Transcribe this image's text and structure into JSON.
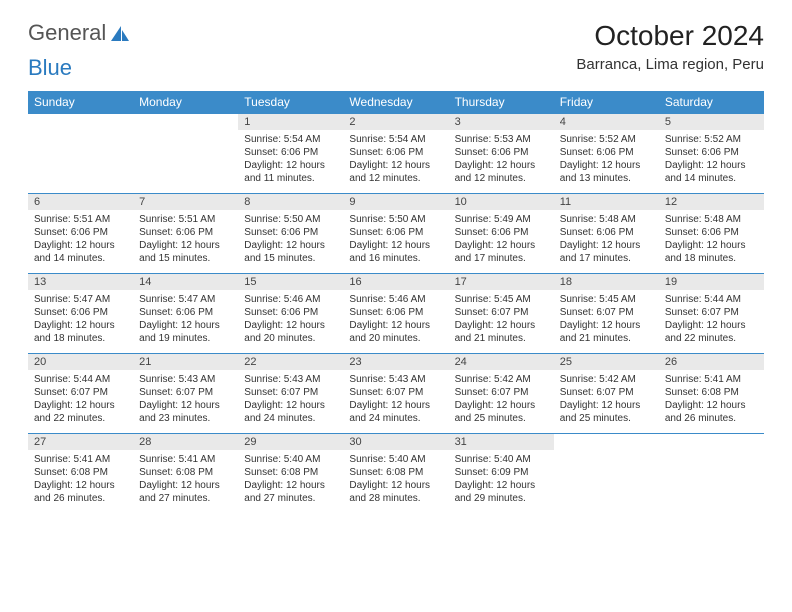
{
  "brand": {
    "part1": "General",
    "part2": "Blue"
  },
  "title": "October 2024",
  "location": "Barranca, Lima region, Peru",
  "colors": {
    "header_bg": "#3b8bc9",
    "header_text": "#ffffff",
    "daynum_bg": "#e9e9e9",
    "rule": "#3b8bc9",
    "text": "#333333",
    "brand_blue": "#2a7abf"
  },
  "dow": [
    "Sunday",
    "Monday",
    "Tuesday",
    "Wednesday",
    "Thursday",
    "Friday",
    "Saturday"
  ],
  "weeks": [
    {
      "nums": [
        "",
        "",
        "1",
        "2",
        "3",
        "4",
        "5"
      ],
      "cells": [
        null,
        null,
        {
          "sr": "5:54 AM",
          "ss": "6:06 PM",
          "dl": "12 hours and 11 minutes."
        },
        {
          "sr": "5:54 AM",
          "ss": "6:06 PM",
          "dl": "12 hours and 12 minutes."
        },
        {
          "sr": "5:53 AM",
          "ss": "6:06 PM",
          "dl": "12 hours and 12 minutes."
        },
        {
          "sr": "5:52 AM",
          "ss": "6:06 PM",
          "dl": "12 hours and 13 minutes."
        },
        {
          "sr": "5:52 AM",
          "ss": "6:06 PM",
          "dl": "12 hours and 14 minutes."
        }
      ]
    },
    {
      "nums": [
        "6",
        "7",
        "8",
        "9",
        "10",
        "11",
        "12"
      ],
      "cells": [
        {
          "sr": "5:51 AM",
          "ss": "6:06 PM",
          "dl": "12 hours and 14 minutes."
        },
        {
          "sr": "5:51 AM",
          "ss": "6:06 PM",
          "dl": "12 hours and 15 minutes."
        },
        {
          "sr": "5:50 AM",
          "ss": "6:06 PM",
          "dl": "12 hours and 15 minutes."
        },
        {
          "sr": "5:50 AM",
          "ss": "6:06 PM",
          "dl": "12 hours and 16 minutes."
        },
        {
          "sr": "5:49 AM",
          "ss": "6:06 PM",
          "dl": "12 hours and 17 minutes."
        },
        {
          "sr": "5:48 AM",
          "ss": "6:06 PM",
          "dl": "12 hours and 17 minutes."
        },
        {
          "sr": "5:48 AM",
          "ss": "6:06 PM",
          "dl": "12 hours and 18 minutes."
        }
      ]
    },
    {
      "nums": [
        "13",
        "14",
        "15",
        "16",
        "17",
        "18",
        "19"
      ],
      "cells": [
        {
          "sr": "5:47 AM",
          "ss": "6:06 PM",
          "dl": "12 hours and 18 minutes."
        },
        {
          "sr": "5:47 AM",
          "ss": "6:06 PM",
          "dl": "12 hours and 19 minutes."
        },
        {
          "sr": "5:46 AM",
          "ss": "6:06 PM",
          "dl": "12 hours and 20 minutes."
        },
        {
          "sr": "5:46 AM",
          "ss": "6:06 PM",
          "dl": "12 hours and 20 minutes."
        },
        {
          "sr": "5:45 AM",
          "ss": "6:07 PM",
          "dl": "12 hours and 21 minutes."
        },
        {
          "sr": "5:45 AM",
          "ss": "6:07 PM",
          "dl": "12 hours and 21 minutes."
        },
        {
          "sr": "5:44 AM",
          "ss": "6:07 PM",
          "dl": "12 hours and 22 minutes."
        }
      ]
    },
    {
      "nums": [
        "20",
        "21",
        "22",
        "23",
        "24",
        "25",
        "26"
      ],
      "cells": [
        {
          "sr": "5:44 AM",
          "ss": "6:07 PM",
          "dl": "12 hours and 22 minutes."
        },
        {
          "sr": "5:43 AM",
          "ss": "6:07 PM",
          "dl": "12 hours and 23 minutes."
        },
        {
          "sr": "5:43 AM",
          "ss": "6:07 PM",
          "dl": "12 hours and 24 minutes."
        },
        {
          "sr": "5:43 AM",
          "ss": "6:07 PM",
          "dl": "12 hours and 24 minutes."
        },
        {
          "sr": "5:42 AM",
          "ss": "6:07 PM",
          "dl": "12 hours and 25 minutes."
        },
        {
          "sr": "5:42 AM",
          "ss": "6:07 PM",
          "dl": "12 hours and 25 minutes."
        },
        {
          "sr": "5:41 AM",
          "ss": "6:08 PM",
          "dl": "12 hours and 26 minutes."
        }
      ]
    },
    {
      "nums": [
        "27",
        "28",
        "29",
        "30",
        "31",
        "",
        ""
      ],
      "cells": [
        {
          "sr": "5:41 AM",
          "ss": "6:08 PM",
          "dl": "12 hours and 26 minutes."
        },
        {
          "sr": "5:41 AM",
          "ss": "6:08 PM",
          "dl": "12 hours and 27 minutes."
        },
        {
          "sr": "5:40 AM",
          "ss": "6:08 PM",
          "dl": "12 hours and 27 minutes."
        },
        {
          "sr": "5:40 AM",
          "ss": "6:08 PM",
          "dl": "12 hours and 28 minutes."
        },
        {
          "sr": "5:40 AM",
          "ss": "6:09 PM",
          "dl": "12 hours and 29 minutes."
        },
        null,
        null
      ]
    }
  ],
  "labels": {
    "sunrise": "Sunrise: ",
    "sunset": "Sunset: ",
    "daylight": "Daylight: "
  }
}
